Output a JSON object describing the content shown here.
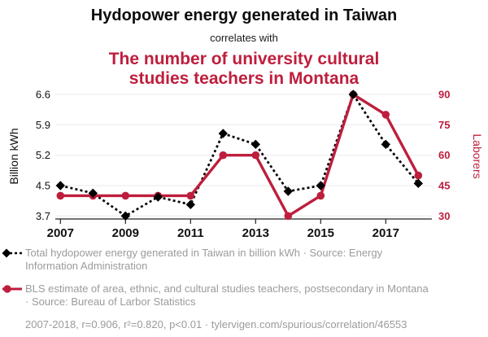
{
  "header": {
    "title": "Hydopower energy generated in Taiwan",
    "subtitle": "correlates with",
    "title2": "The number of university cultural studies teachers in Montana"
  },
  "chart_data": {
    "type": "line",
    "x": [
      2007,
      2008,
      2009,
      2010,
      2011,
      2012,
      2013,
      2014,
      2015,
      2016,
      2017,
      2018
    ],
    "x_tick_labels": [
      "2007",
      "2009",
      "2011",
      "2013",
      "2015",
      "2017"
    ],
    "left_axis": {
      "label": "Billion kWh",
      "ticks": [
        3.7,
        4.5,
        5.2,
        5.9,
        6.6
      ]
    },
    "right_axis": {
      "label": "Laborers",
      "ticks": [
        30,
        45,
        60,
        75,
        90
      ]
    },
    "grid": true,
    "legend_position": "bottom",
    "series": [
      {
        "name": "Total hydopower energy generated in Taiwan in billion kWh",
        "axis": "left",
        "color": "#000000",
        "style": "dashed-diamond",
        "values": [
          4.5,
          4.3,
          3.7,
          4.2,
          4.0,
          5.7,
          5.45,
          4.35,
          4.5,
          6.6,
          5.45,
          4.55
        ]
      },
      {
        "name": "BLS estimate of area, ethnic, and cultural studies teachers, postsecondary in Montana",
        "axis": "right",
        "color": "#be1e3d",
        "style": "solid-circle",
        "values": [
          40,
          40,
          40,
          40,
          40,
          60,
          60,
          30,
          40,
          90,
          80,
          50
        ]
      }
    ]
  },
  "legend": {
    "entries": [
      {
        "marker": "black-diamond-dashed",
        "text": "Total hydopower energy generated in Taiwan in billion kWh · Source: Energy Information Administration"
      },
      {
        "marker": "red-circle-solid",
        "text": "BLS estimate of area, ethnic, and cultural studies teachers, postsecondary in Montana · Source: Bureau of Larbor Statistics"
      }
    ],
    "footnote": "2007-2018, r=0.906, r²=0.820, p<0.01 · tylervigen.com/spurious/correlation/46553"
  },
  "colors": {
    "accent_red": "#be1e3d",
    "legend_gray": "#9b9b9b",
    "grid": "#eaeaea",
    "axis": "#222222",
    "text": "#111111"
  }
}
